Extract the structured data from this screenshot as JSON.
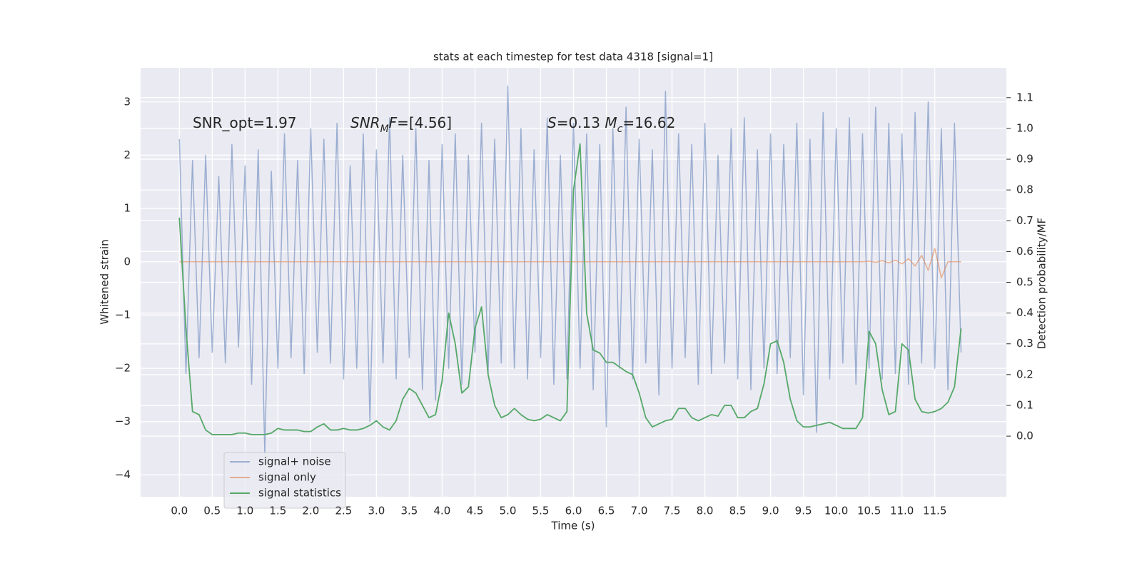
{
  "chart_data": {
    "type": "line",
    "title": "stats at each timestep for test data 4318 [signal=1]",
    "xlabel": "Time (s)",
    "ylabel": "Whitened strain",
    "y2label": "Detection probability/MF",
    "xlim": [
      -0.59,
      12.59
    ],
    "ylim": [
      -4.41,
      3.64
    ],
    "y2lim": [
      -0.197,
      1.197
    ],
    "xticks": [
      {
        "value": 0,
        "label": "0.0"
      },
      {
        "value": 0.5,
        "label": "0.5"
      },
      {
        "value": 1,
        "label": "1.0"
      },
      {
        "value": 1.5,
        "label": "1.5"
      },
      {
        "value": 2,
        "label": "2.0"
      },
      {
        "value": 2.5,
        "label": "2.5"
      },
      {
        "value": 3,
        "label": "3.0"
      },
      {
        "value": 3.5,
        "label": "3.5"
      },
      {
        "value": 4,
        "label": "4.0"
      },
      {
        "value": 4.5,
        "label": "4.5"
      },
      {
        "value": 5,
        "label": "5.0"
      },
      {
        "value": 5.5,
        "label": "5.5"
      },
      {
        "value": 6,
        "label": "6.0"
      },
      {
        "value": 6.5,
        "label": "6.5"
      },
      {
        "value": 7,
        "label": "7.0"
      },
      {
        "value": 7.5,
        "label": "7.5"
      },
      {
        "value": 8,
        "label": "8.0"
      },
      {
        "value": 8.5,
        "label": "8.5"
      },
      {
        "value": 9,
        "label": "9.0"
      },
      {
        "value": 9.5,
        "label": "9.5"
      },
      {
        "value": 10,
        "label": "10.0"
      },
      {
        "value": 10.5,
        "label": "10.5"
      },
      {
        "value": 11,
        "label": "11.0"
      },
      {
        "value": 11.5,
        "label": "11.5"
      }
    ],
    "yticks": [
      {
        "value": -4,
        "label": "−4"
      },
      {
        "value": -3,
        "label": "−3"
      },
      {
        "value": -2,
        "label": "−2"
      },
      {
        "value": -1,
        "label": "−1"
      },
      0,
      1,
      2,
      3
    ],
    "y2ticks": [
      {
        "value": 0,
        "label": "0.0"
      },
      {
        "value": 0.1,
        "label": "0.1"
      },
      {
        "value": 0.2,
        "label": "0.2"
      },
      {
        "value": 0.3,
        "label": "0.3"
      },
      {
        "value": 0.4,
        "label": "0.4"
      },
      {
        "value": 0.5,
        "label": "0.5"
      },
      {
        "value": 0.6,
        "label": "0.6"
      },
      {
        "value": 0.7,
        "label": "0.7"
      },
      {
        "value": 0.8,
        "label": "0.8"
      },
      {
        "value": 0.9,
        "label": "0.9"
      },
      {
        "value": 1,
        "label": "1.0"
      },
      {
        "value": 1.1,
        "label": "1.1"
      }
    ],
    "grid": true,
    "legend": "lower left",
    "annotations": [
      [
        {
          "text": "SNR_opt=1.97"
        }
      ],
      [
        {
          "text": "SNR",
          "style": "italic"
        },
        {
          "text": "M",
          "style": "sub"
        },
        {
          "text": "F",
          "style": "italic"
        },
        {
          "text": "=[4.56]"
        }
      ],
      [
        {
          "text": "S",
          "style": "italic"
        },
        {
          "text": "=0.13   "
        },
        {
          "text": "M",
          "style": "italic"
        },
        {
          "text": "c",
          "style": "sub"
        },
        {
          "text": "=16.62"
        }
      ]
    ],
    "x": [
      0,
      0.1,
      0.2,
      0.3,
      0.4,
      0.5,
      0.6,
      0.7,
      0.8,
      0.9,
      1,
      1.1,
      1.2,
      1.3,
      1.4,
      1.5,
      1.6,
      1.7,
      1.8,
      1.9,
      2,
      2.1,
      2.2,
      2.3,
      2.4,
      2.5,
      2.6,
      2.7,
      2.8,
      2.9,
      3,
      3.1,
      3.2,
      3.3,
      3.4,
      3.5,
      3.6,
      3.7,
      3.8,
      3.9,
      4,
      4.1,
      4.2,
      4.3,
      4.4,
      4.5,
      4.6,
      4.7,
      4.8,
      4.9,
      5,
      5.1,
      5.2,
      5.3,
      5.4,
      5.5,
      5.6,
      5.7,
      5.8,
      5.9,
      6,
      6.1,
      6.2,
      6.3,
      6.4,
      6.5,
      6.6,
      6.7,
      6.8,
      6.9,
      7,
      7.1,
      7.2,
      7.3,
      7.4,
      7.5,
      7.6,
      7.7,
      7.8,
      7.9,
      8,
      8.1,
      8.2,
      8.3,
      8.4,
      8.5,
      8.6,
      8.7,
      8.8,
      8.9,
      9,
      9.1,
      9.2,
      9.3,
      9.4,
      9.5,
      9.6,
      9.7,
      9.8,
      9.9,
      10,
      10.1,
      10.2,
      10.3,
      10.4,
      10.5,
      10.6,
      10.7,
      10.8,
      10.9,
      11,
      11.1,
      11.2,
      11.3,
      11.4,
      11.5,
      11.6,
      11.7,
      11.8,
      11.9
    ],
    "series": [
      {
        "name": "signal+ noise",
        "color": "#4c72b0",
        "alpha": 0.5,
        "values": [
          2.3,
          -2.1,
          1.9,
          -1.8,
          2.0,
          -1.7,
          1.6,
          -1.9,
          2.2,
          -1.6,
          1.8,
          -2.3,
          2.1,
          -3.6,
          1.7,
          -2.0,
          2.4,
          -1.8,
          1.9,
          -2.1,
          2.5,
          -1.7,
          2.3,
          -1.9,
          2.6,
          -2.2,
          1.8,
          -2.0,
          2.4,
          -3.0,
          2.1,
          -1.9,
          2.7,
          -2.2,
          2.0,
          -1.8,
          2.5,
          -2.4,
          1.9,
          -2.6,
          2.2,
          -2.0,
          2.4,
          -2.3,
          2.0,
          -1.7,
          2.6,
          -2.1,
          2.3,
          -1.9,
          3.3,
          -2.0,
          2.5,
          -2.2,
          2.1,
          -1.8,
          2.7,
          -2.3,
          2.0,
          -2.2,
          2.6,
          -2.0,
          2.4,
          -2.4,
          2.2,
          -3.1,
          2.5,
          -2.0,
          2.9,
          -2.2,
          2.3,
          -1.9,
          2.1,
          -2.5,
          3.2,
          -2.0,
          2.4,
          -1.8,
          2.2,
          -2.3,
          2.6,
          -2.1,
          2.0,
          -1.9,
          2.5,
          -2.2,
          2.7,
          -2.4,
          2.1,
          -2.0,
          2.4,
          -2.1,
          2.2,
          -1.8,
          2.6,
          -2.5,
          2.3,
          -3.2,
          2.8,
          -2.2,
          2.5,
          -1.9,
          2.7,
          -2.3,
          2.4,
          -2.0,
          2.9,
          -2.2,
          2.6,
          -2.1,
          2.4,
          -2.3,
          2.8,
          -1.9,
          3.0,
          -2.0,
          2.5,
          -2.4,
          2.6,
          -1.7
        ]
      },
      {
        "name": "signal only",
        "color": "#dd8452",
        "alpha": 0.6,
        "values": [
          0,
          0,
          0,
          0,
          0,
          0,
          0,
          0,
          0,
          0,
          0,
          0,
          0,
          0,
          0,
          0,
          0,
          0,
          0,
          0,
          0,
          0,
          0,
          0,
          0,
          0,
          0,
          0,
          0,
          0,
          0,
          0,
          0,
          0,
          0,
          0,
          0,
          0,
          0,
          0,
          0,
          0,
          0,
          0,
          0,
          0,
          0,
          0,
          0,
          0,
          0,
          0,
          0,
          0,
          0,
          0,
          0,
          0,
          0,
          0,
          0,
          0,
          0,
          0,
          0,
          0,
          0,
          0,
          0,
          0,
          0,
          0,
          0,
          0,
          0,
          0,
          0,
          0,
          0,
          0,
          0,
          0,
          0,
          0,
          0,
          0,
          0,
          0,
          0,
          0,
          0,
          0,
          0,
          0,
          0,
          0,
          0,
          0,
          0,
          0,
          0,
          0,
          0,
          0,
          0,
          0.01,
          -0.01,
          0.02,
          -0.02,
          0.03,
          -0.04,
          0.06,
          -0.08,
          0.12,
          -0.16,
          0.25,
          -0.3,
          0,
          0,
          0
        ]
      },
      {
        "name": "signal statistics",
        "color": "#55a868",
        "alpha": 1,
        "axis": "y2",
        "values": [
          0.71,
          0.35,
          0.08,
          0.07,
          0.02,
          0.005,
          0.005,
          0.005,
          0.005,
          0.01,
          0.01,
          0.005,
          0.005,
          0.005,
          0.01,
          0.025,
          0.02,
          0.02,
          0.02,
          0.015,
          0.015,
          0.03,
          0.04,
          0.02,
          0.02,
          0.025,
          0.02,
          0.02,
          0.025,
          0.035,
          0.05,
          0.03,
          0.02,
          0.05,
          0.12,
          0.155,
          0.14,
          0.1,
          0.06,
          0.07,
          0.18,
          0.4,
          0.3,
          0.14,
          0.16,
          0.35,
          0.42,
          0.2,
          0.1,
          0.06,
          0.07,
          0.09,
          0.07,
          0.055,
          0.05,
          0.055,
          0.07,
          0.06,
          0.05,
          0.08,
          0.8,
          0.95,
          0.4,
          0.28,
          0.27,
          0.24,
          0.24,
          0.225,
          0.21,
          0.2,
          0.14,
          0.06,
          0.03,
          0.04,
          0.05,
          0.055,
          0.09,
          0.09,
          0.06,
          0.05,
          0.06,
          0.07,
          0.065,
          0.1,
          0.1,
          0.06,
          0.06,
          0.08,
          0.09,
          0.17,
          0.3,
          0.31,
          0.24,
          0.12,
          0.05,
          0.03,
          0.03,
          0.035,
          0.04,
          0.045,
          0.035,
          0.025,
          0.025,
          0.025,
          0.06,
          0.34,
          0.3,
          0.15,
          0.07,
          0.08,
          0.3,
          0.28,
          0.12,
          0.08,
          0.075,
          0.08,
          0.09,
          0.11,
          0.16,
          0.35
        ]
      }
    ]
  }
}
